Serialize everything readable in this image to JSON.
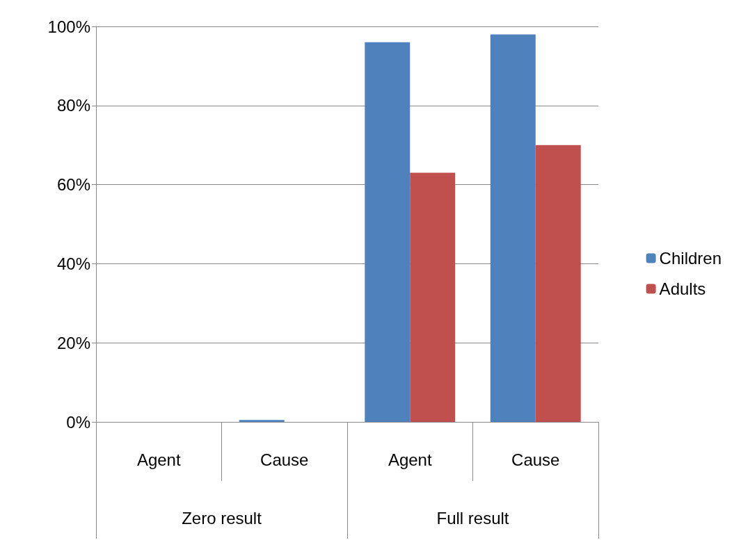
{
  "chart_data": {
    "type": "bar",
    "categories": [
      "Agent",
      "Cause",
      "Agent",
      "Cause"
    ],
    "annotations": [
      "Zero result",
      "Full result"
    ],
    "series": [
      {
        "name": "Children",
        "color": "#4f81bd",
        "values": [
          0,
          0.5,
          96,
          98
        ]
      },
      {
        "name": "Adults",
        "color": "#c0504d",
        "values": [
          0,
          0,
          63,
          70
        ]
      }
    ],
    "ylim": [
      0,
      100
    ],
    "yticks": [
      {
        "value": 0,
        "label": "0%"
      },
      {
        "value": 20,
        "label": "20%"
      },
      {
        "value": 40,
        "label": "40%"
      },
      {
        "value": 60,
        "label": "60%"
      },
      {
        "value": 80,
        "label": "80%"
      },
      {
        "value": 100,
        "label": "100%"
      }
    ],
    "grid": "y",
    "legend": "right"
  }
}
